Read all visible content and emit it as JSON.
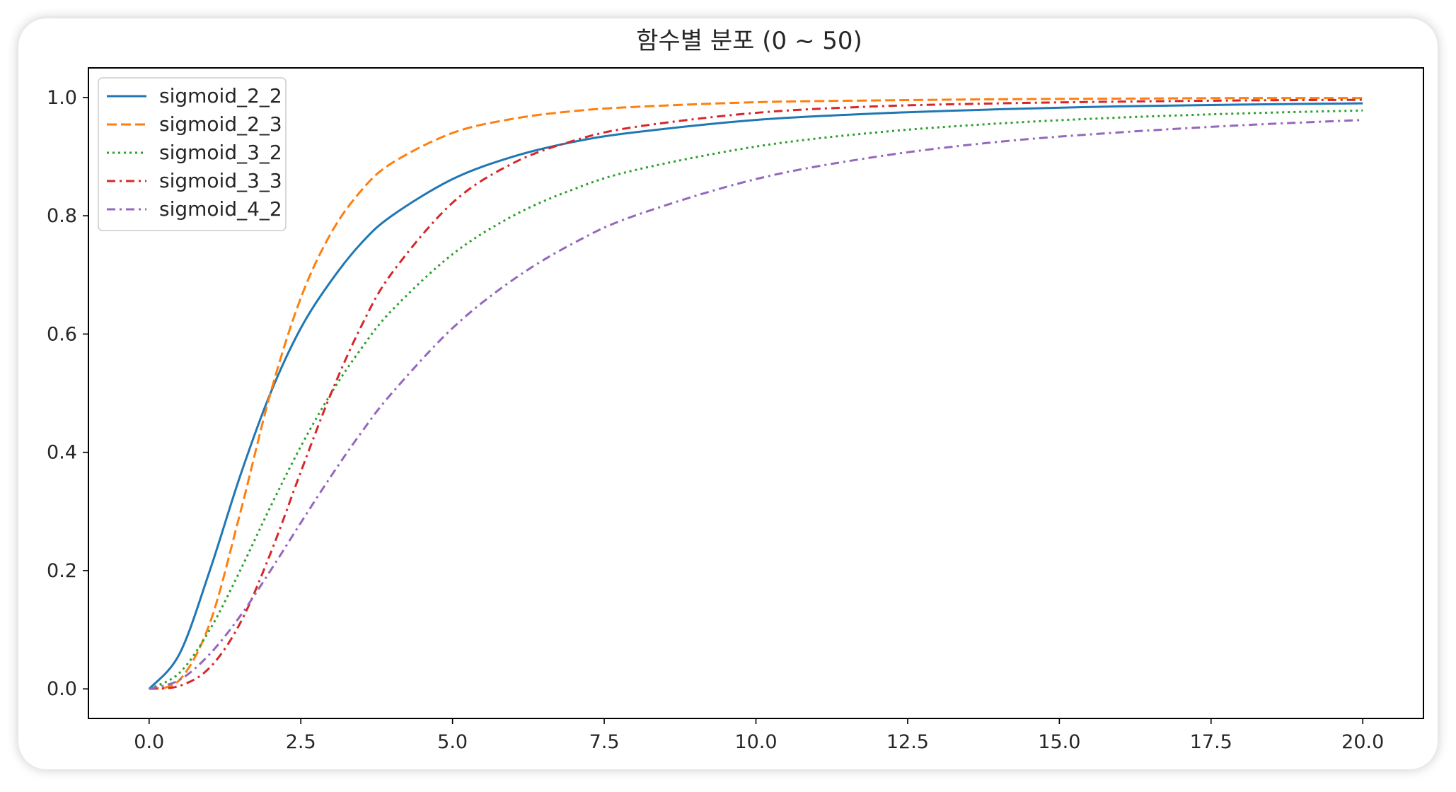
{
  "chart_data": {
    "type": "line",
    "title": "함수별 분포 (0 ~ 50)",
    "xlabel": "",
    "ylabel": "",
    "xlim": [
      -1,
      21
    ],
    "ylim": [
      -0.05,
      1.05
    ],
    "xticks": [
      0.0,
      2.5,
      5.0,
      7.5,
      10.0,
      12.5,
      15.0,
      17.5,
      20.0
    ],
    "xtick_labels": [
      "0.0",
      "2.5",
      "5.0",
      "7.5",
      "10.0",
      "12.5",
      "15.0",
      "17.5",
      "20.0"
    ],
    "yticks": [
      0.0,
      0.2,
      0.4,
      0.6,
      0.8,
      1.0
    ],
    "ytick_labels": [
      "0.0",
      "0.2",
      "0.4",
      "0.6",
      "0.8",
      "1.0"
    ],
    "grid": false,
    "legend_position": "top-left",
    "x": [
      0,
      0.5,
      1,
      1.5,
      2,
      2.5,
      3,
      3.5,
      4,
      5,
      6,
      7,
      8,
      10,
      12,
      14,
      16,
      18,
      20
    ],
    "series": [
      {
        "name": "sigmoid_2_2",
        "color": "#1f77b4",
        "dash": "solid",
        "values": [
          0.0,
          0.059,
          0.2,
          0.36,
          0.5,
          0.61,
          0.69,
          0.754,
          0.8,
          0.862,
          0.9,
          0.925,
          0.941,
          0.962,
          0.973,
          0.98,
          0.985,
          0.988,
          0.99
        ]
      },
      {
        "name": "sigmoid_2_3",
        "color": "#ff7f0e",
        "dash": "dashed",
        "values": [
          0.0,
          0.015,
          0.111,
          0.297,
          0.5,
          0.661,
          0.771,
          0.843,
          0.889,
          0.94,
          0.964,
          0.977,
          0.984,
          0.992,
          0.995,
          0.997,
          0.998,
          0.999,
          0.999
        ]
      },
      {
        "name": "sigmoid_3_2",
        "color": "#2ca02c",
        "dash": "dotted",
        "values": [
          0.0,
          0.027,
          0.1,
          0.2,
          0.308,
          0.41,
          0.5,
          0.576,
          0.64,
          0.735,
          0.8,
          0.845,
          0.877,
          0.917,
          0.941,
          0.956,
          0.966,
          0.973,
          0.978
        ]
      },
      {
        "name": "sigmoid_3_3",
        "color": "#d62728",
        "dash": "dashdot",
        "values": [
          0.0,
          0.005,
          0.036,
          0.111,
          0.229,
          0.367,
          0.5,
          0.614,
          0.703,
          0.822,
          0.889,
          0.927,
          0.95,
          0.974,
          0.985,
          0.99,
          0.993,
          0.995,
          0.996
        ]
      },
      {
        "name": "sigmoid_4_2",
        "color": "#9467bd",
        "dash": "dashdot",
        "values": [
          0.0,
          0.015,
          0.059,
          0.123,
          0.2,
          0.281,
          0.36,
          0.434,
          0.5,
          0.61,
          0.692,
          0.754,
          0.8,
          0.862,
          0.9,
          0.925,
          0.941,
          0.953,
          0.962
        ]
      }
    ]
  }
}
